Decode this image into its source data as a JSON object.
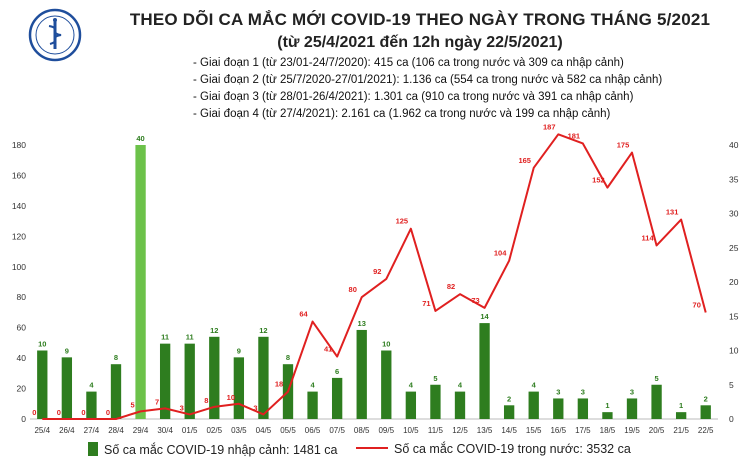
{
  "header": {
    "title_line1": "THEO DÕI CA MẮC MỚI COVID-19 THEO NGÀY TRONG THÁNG 5/2021",
    "title_line2": "(từ 25/4/2021 đến 12h ngày 22/5/2021)",
    "logo_text_top": "BỘ Y TẾ",
    "logo_text_bottom": "MINISTRY OF HEALTH",
    "phases": [
      "- Giai đoạn 1 (từ 23/01-24/7/2020): 415 ca (106 ca trong nước và 309 ca nhập cảnh)",
      "- Giai đoạn 2 (từ 25/7/2020-27/01/2021): 1.136 ca (554 ca trong nước và 582 ca nhập cảnh)",
      "- Giai đoạn 3 (từ 28/01-26/4/2021): 1.301 ca (910 ca trong nước và 391 ca nhập cảnh)",
      "- Giai đoạn 4 (từ 27/4/2021): 2.161 ca (1.962 ca trong nước và 199 ca nhập cảnh)"
    ]
  },
  "legend": {
    "bar_label": "Số ca mắc COVID-19 nhập cảnh: 1481 ca",
    "line_label": "Số ca mắc COVID-19 trong nước: 3532 ca"
  },
  "colors": {
    "bar": "#2e7d1f",
    "bar_highlight": "#6cc24a",
    "line": "#e02020",
    "axis_text": "#333333"
  },
  "chart_data": {
    "type": "bar+line",
    "categories": [
      "25/4",
      "26/4",
      "27/4",
      "28/4",
      "29/4",
      "30/4",
      "01/5",
      "02/5",
      "03/5",
      "04/5",
      "05/5",
      "06/5",
      "07/5",
      "08/5",
      "09/5",
      "10/5",
      "11/5",
      "12/5",
      "13/5",
      "14/5",
      "15/5",
      "16/5",
      "17/5",
      "18/5",
      "19/5",
      "20/5",
      "21/5",
      "22/5"
    ],
    "series": [
      {
        "name": "Số ca mắc COVID-19 nhập cảnh: 1481 ca",
        "axis": "right",
        "type": "bar",
        "values": [
          10,
          9,
          4,
          8,
          40,
          11,
          11,
          12,
          9,
          12,
          8,
          4,
          6,
          13,
          10,
          4,
          5,
          4,
          14,
          2,
          4,
          3,
          3,
          1,
          3,
          5,
          1,
          2
        ],
        "highlight_index": 4
      },
      {
        "name": "Số ca mắc COVID-19 trong nước: 3532 ca",
        "axis": "left",
        "type": "line",
        "values": [
          0,
          0,
          0,
          0,
          5,
          7,
          3,
          8,
          10,
          3,
          18,
          64,
          41,
          80,
          92,
          125,
          71,
          82,
          73,
          104,
          165,
          187,
          181,
          152,
          175,
          114,
          131,
          70
        ]
      }
    ],
    "left_axis": {
      "min": 0,
      "max": 180,
      "ticks": [
        0,
        20,
        40,
        60,
        80,
        100,
        120,
        140,
        160,
        180
      ]
    },
    "right_axis": {
      "min": 0,
      "max": 40,
      "ticks": [
        0,
        5,
        10,
        15,
        20,
        25,
        30,
        35,
        40
      ]
    },
    "grid": false,
    "legend_position": "bottom"
  }
}
